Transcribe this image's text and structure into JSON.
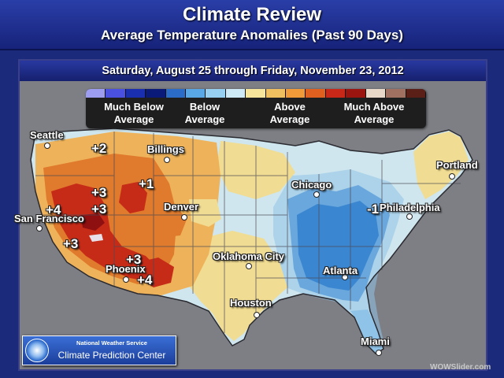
{
  "header": {
    "title": "Climate Review",
    "subtitle": "Average Temperature Anomalies (Past 90 Days)"
  },
  "date_range": "Saturday, August 25 through Friday, November 23, 2012",
  "legend": {
    "labels": [
      "Much Below Average",
      "Below Average",
      "Above Average",
      "Much Above Average"
    ],
    "colors": [
      "#9c9cf0",
      "#4a50e0",
      "#1a2fb0",
      "#0a1a78",
      "#2b6cc8",
      "#5aa7e6",
      "#96cff0",
      "#cde9f5",
      "#f6e59a",
      "#f0c060",
      "#f09a3a",
      "#e06020",
      "#c82818",
      "#9a1410",
      "#e8d8c8",
      "#a07060",
      "#5a2018"
    ]
  },
  "map": {
    "colors": {
      "background": "#7d7f85",
      "much_below": "#3a86d0",
      "below": "#8fc3e8",
      "near": "#cfe6ee",
      "slightly_above": "#f0dc92",
      "above": "#eeb35a",
      "well_above": "#e07a2c",
      "much_above": "#c62b18",
      "extreme": "#8e1010"
    },
    "cities": [
      {
        "name": "Seattle"
      },
      {
        "name": "Billings"
      },
      {
        "name": "San Francisco"
      },
      {
        "name": "Denver"
      },
      {
        "name": "Chicago"
      },
      {
        "name": "Portland"
      },
      {
        "name": "Philadelphia"
      },
      {
        "name": "Oklahoma City"
      },
      {
        "name": "Phoenix"
      },
      {
        "name": "Atlanta"
      },
      {
        "name": "Houston"
      },
      {
        "name": "Miami"
      }
    ],
    "anomalies": [
      "+2",
      "+3",
      "+1",
      "+4",
      "+3",
      "+3",
      "+3",
      "+4",
      "-1"
    ]
  },
  "branding": {
    "line1": "National Weather Service",
    "line2": "Climate Prediction Center",
    "logo_icon": "noaa-logo-icon",
    "watermark": "WOWSlider.com"
  }
}
